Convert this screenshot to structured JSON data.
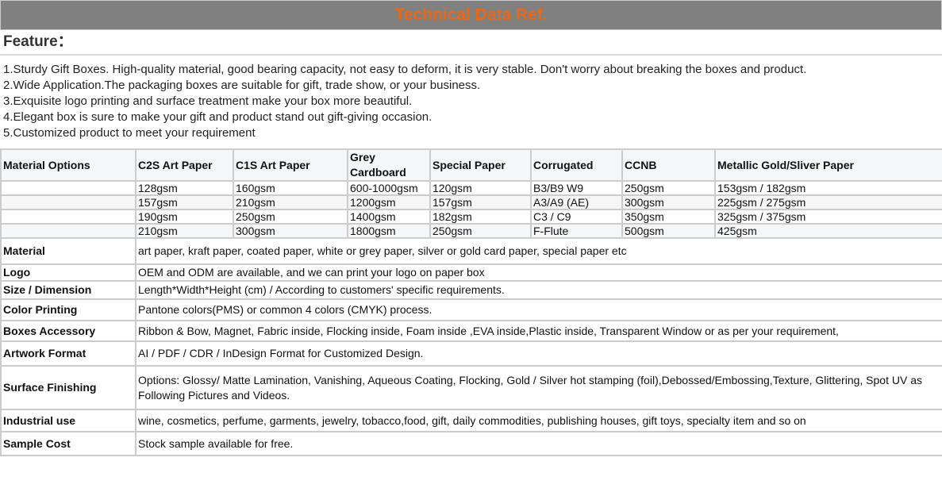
{
  "title": "Technical Data Ref.",
  "feature_heading": "Feature：",
  "features": [
    "1.Sturdy Gift Boxes. High-quality material, good bearing capacity, not easy to deform, it is very stable. Don't worry about breaking the boxes and product.",
    "2.Wide Application.The packaging boxes are suitable for gift, trade show, or your business.",
    "3.Exquisite logo printing and surface treatment make your box more beautiful.",
    "4.Elegant box is sure to make your gift and product stand out gift-giving occasion.",
    "5.Customized product to meet your requirement"
  ],
  "material_table": {
    "headers": [
      "Material Options",
      "C2S Art Paper",
      "C1S Art Paper",
      "Grey Cardboard",
      "Special Paper",
      "Corrugated",
      "CCNB",
      "Metallic Gold/Sliver Paper"
    ],
    "rows": [
      [
        "",
        "128gsm",
        "160gsm",
        "600-1000gsm",
        "120gsm",
        "B3/B9 W9",
        "250gsm",
        "153gsm / 182gsm"
      ],
      [
        "",
        "157gsm",
        "210gsm",
        "1200gsm",
        "157gsm",
        "A3/A9 (AE)",
        "300gsm",
        "225gsm / 275gsm"
      ],
      [
        "",
        "190gsm",
        "250gsm",
        "1400gsm",
        "182gsm",
        "C3 / C9",
        "350gsm",
        "325gsm / 375gsm"
      ],
      [
        "",
        "210gsm",
        "300gsm",
        "1800gsm",
        "250gsm",
        "F-Flute",
        "500gsm",
        "425gsm"
      ]
    ]
  },
  "specs": [
    {
      "label": "Material",
      "value": "art paper, kraft paper, coated paper, white or grey paper, silver or gold card paper, special paper etc"
    },
    {
      "label": "Logo",
      "value": "OEM and ODM are available, and we can print your logo on paper box"
    },
    {
      "label": "Size / Dimension",
      "value": "Length*Width*Height (cm) / According to customers' specific requirements."
    },
    {
      "label": "Color Printing",
      "value": "Pantone colors(PMS) or common 4 colors (CMYK) process."
    },
    {
      "label": "Boxes Accessory",
      "value": "Ribbon & Bow, Magnet, Fabric inside, Flocking inside, Foam inside ,EVA inside,Plastic inside, Transparent Window or as per your requirement,"
    },
    {
      "label": "Artwork Format",
      "value": "AI / PDF / CDR / InDesign Format for Customized Design."
    },
    {
      "label": "Surface Finishing",
      "value": "Options: Glossy/ Matte Lamination, Vanishing, Aqueous Coating, Flocking, Gold / Silver hot stamping (foil),Debossed/Embossing,Texture, Glittering, Spot UV as Following Pictures and Videos."
    },
    {
      "label": "Industrial use",
      "value": "wine, cosmetics, perfume, garments, jewelry, tobacco,food, gift, daily commodities, publishing houses, gift toys, specialty item and so on"
    },
    {
      "label": "Sample Cost",
      "value": "Stock sample available for free."
    }
  ],
  "colors": {
    "title_bar": "#808080",
    "title_text": "#e8681a",
    "border": "#cccccc",
    "alt_row": "#f5f6f8"
  }
}
